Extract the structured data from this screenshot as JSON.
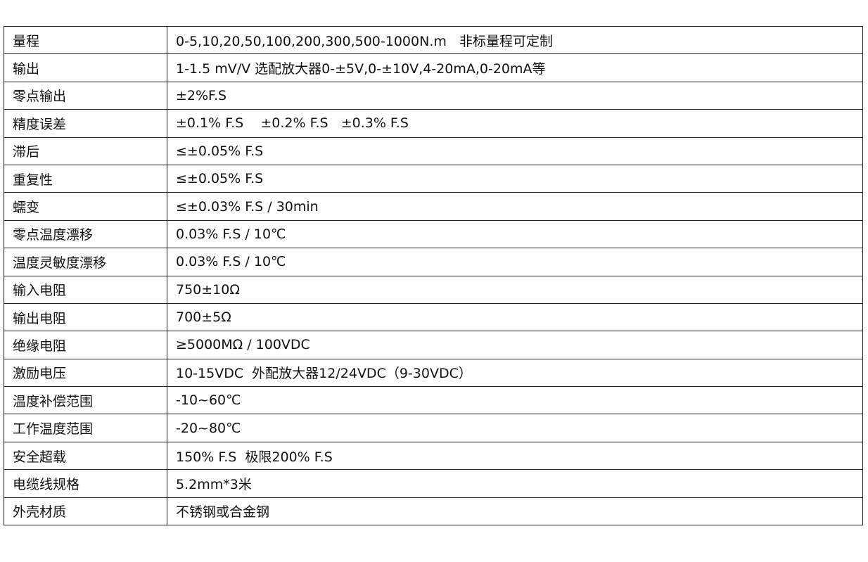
{
  "spec_table": {
    "rows": [
      {
        "label": "量程",
        "value": "0-5,10,20,50,100,200,300,500-1000N.m   非标量程可定制"
      },
      {
        "label": "输出",
        "value": "1-1.5 mV/V 选配放大器0-±5V,0-±10V,4-20mA,0-20mA等"
      },
      {
        "label": "零点输出",
        "value": "±2%F.S"
      },
      {
        "label": "精度误差",
        "value": "±0.1% F.S    ±0.2% F.S   ±0.3% F.S"
      },
      {
        "label": "滞后",
        "value": "≤±0.05% F.S"
      },
      {
        "label": "重复性",
        "value": "≤±0.05% F.S"
      },
      {
        "label": "蠕变",
        "value": "≤±0.03% F.S / 30min"
      },
      {
        "label": "零点温度漂移",
        "value": "0.03% F.S / 10℃"
      },
      {
        "label": "温度灵敏度漂移",
        "value": "0.03% F.S / 10℃"
      },
      {
        "label": "输入电阻",
        "value": "750±10Ω"
      },
      {
        "label": "输出电阻",
        "value": "700±5Ω"
      },
      {
        "label": "绝缘电阻",
        "value": "≥5000MΩ / 100VDC"
      },
      {
        "label": "激励电压",
        "value": "10-15VDC  外配放大器12/24VDC（9-30VDC）"
      },
      {
        "label": "温度补偿范围",
        "value": "-10~60℃"
      },
      {
        "label": "工作温度范围",
        "value": "-20~80℃"
      },
      {
        "label": "安全超载",
        "value": "150% F.S  极限200% F.S"
      },
      {
        "label": "电缆线规格",
        "value": "5.2mm*3米"
      },
      {
        "label": "外壳材质",
        "value": "不锈钢或合金钢"
      }
    ]
  }
}
